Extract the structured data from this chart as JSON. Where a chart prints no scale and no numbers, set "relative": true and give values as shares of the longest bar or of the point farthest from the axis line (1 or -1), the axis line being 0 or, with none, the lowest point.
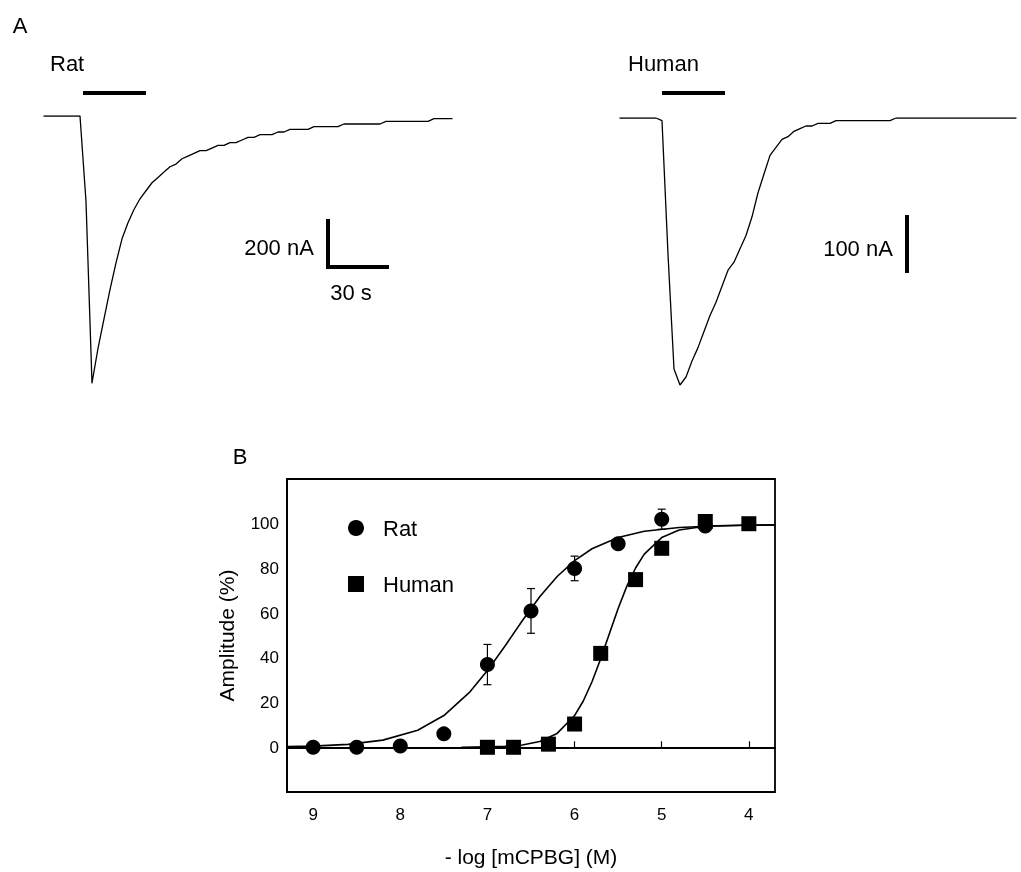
{
  "chart_data": [
    {
      "type": "line",
      "title": "Rat",
      "annotations": [
        "A",
        "200 nA",
        "30 s"
      ],
      "relative": true,
      "marker": "none",
      "color": "#000000",
      "categories": [
        null,
        null,
        null,
        null,
        null,
        null,
        null,
        null,
        null,
        null,
        null,
        null,
        null,
        null,
        null,
        null,
        null,
        null,
        null,
        null,
        null,
        null,
        null,
        null,
        null,
        null,
        null,
        null,
        null,
        null,
        null,
        null,
        null,
        null,
        null,
        null,
        null,
        null,
        null,
        null,
        null,
        null,
        null,
        null,
        null,
        null,
        null,
        null,
        null,
        null,
        null,
        null,
        null,
        null,
        null,
        null,
        null,
        null,
        null,
        null,
        null,
        null,
        null,
        null,
        null,
        null,
        null,
        null,
        null
      ],
      "values": [
        1,
        1,
        1,
        1,
        1,
        1,
        1,
        0.68,
        0,
        0.13,
        0.24,
        0.35,
        0.45,
        0.54,
        0.6,
        0.65,
        0.69,
        0.72,
        0.75,
        0.77,
        0.79,
        0.81,
        0.82,
        0.84,
        0.85,
        0.86,
        0.87,
        0.87,
        0.88,
        0.89,
        0.89,
        0.9,
        0.9,
        0.91,
        0.92,
        0.92,
        0.93,
        0.93,
        0.93,
        0.94,
        0.94,
        0.95,
        0.95,
        0.95,
        0.95,
        0.96,
        0.96,
        0.96,
        0.96,
        0.96,
        0.97,
        0.97,
        0.97,
        0.97,
        0.97,
        0.97,
        0.97,
        0.98,
        0.98,
        0.98,
        0.98,
        0.98,
        0.98,
        0.98,
        0.98,
        0.99,
        0.99,
        0.99,
        0.99
      ]
    },
    {
      "type": "line",
      "title": "Human",
      "annotations": [
        "100 nA"
      ],
      "relative": true,
      "marker": "none",
      "color": "#000000",
      "categories": [
        null,
        null,
        null,
        null,
        null,
        null,
        null,
        null,
        null,
        null,
        null,
        null,
        null,
        null,
        null,
        null,
        null,
        null,
        null,
        null,
        null,
        null,
        null,
        null,
        null,
        null,
        null,
        null,
        null,
        null,
        null,
        null,
        null,
        null,
        null,
        null,
        null,
        null,
        null,
        null,
        null,
        null,
        null,
        null,
        null,
        null,
        null,
        null,
        null,
        null,
        null,
        null,
        null,
        null,
        null,
        null,
        null,
        null,
        null,
        null,
        null,
        null,
        null,
        null,
        null,
        null,
        null
      ],
      "values": [
        1,
        1,
        1,
        1,
        1,
        1,
        1,
        0.99,
        0.49,
        0.06,
        0,
        0.03,
        0.09,
        0.14,
        0.2,
        0.26,
        0.31,
        0.37,
        0.43,
        0.46,
        0.51,
        0.56,
        0.63,
        0.72,
        0.79,
        0.86,
        0.89,
        0.92,
        0.93,
        0.95,
        0.96,
        0.97,
        0.97,
        0.98,
        0.98,
        0.98,
        0.99,
        0.99,
        0.99,
        0.99,
        0.99,
        0.99,
        0.99,
        0.99,
        0.99,
        0.99,
        1,
        1,
        1,
        1,
        1,
        1,
        1,
        1,
        1,
        1,
        1,
        1,
        1,
        1,
        1,
        1,
        1,
        1,
        1,
        1,
        1
      ]
    },
    {
      "type": "scatter",
      "annotations": [
        "B"
      ],
      "xlabel": "- log [mCPBG] (M)",
      "ylabel": "Amplitude (%)",
      "xlim": [
        9.3,
        3.7
      ],
      "xticks": [
        9,
        8,
        7,
        6,
        5,
        4
      ],
      "ylim": [
        -20,
        120
      ],
      "yticks": [
        0,
        20,
        40,
        60,
        80,
        100
      ],
      "legend": "top left",
      "series": [
        {
          "name": "Rat",
          "color": "#000000",
          "marker": "circle",
          "x": [
            9,
            8.5,
            8,
            7.5,
            7,
            6.5,
            6,
            5.5,
            5,
            4.5
          ],
          "values": [
            0,
            0,
            0.6,
            6,
            37,
            61,
            80,
            91,
            102,
            99
          ],
          "errors": [
            null,
            null,
            null,
            null,
            9,
            10,
            5.5,
            null,
            4.5,
            null
          ]
        },
        {
          "name": "Human",
          "color": "#000000",
          "marker": "square",
          "x": [
            7,
            6.7,
            6.3,
            6,
            5.7,
            5.3,
            5,
            4.5,
            4
          ],
          "values": [
            0,
            0,
            1.4,
            10.4,
            42,
            75,
            89,
            101,
            100
          ]
        },
        {
          "type": "line",
          "color": "#000000",
          "marker": "none",
          "x": [
            9.3,
            9,
            8.6,
            8.2,
            7.8,
            7.5,
            7.2,
            7,
            6.8,
            6.6,
            6.4,
            6.2,
            6,
            5.8,
            5.5,
            5.2,
            4.8,
            4.4,
            4,
            3.7
          ],
          "values": [
            0.3,
            0.5,
            1.3,
            3.2,
            7.6,
            14.2,
            24.8,
            34.3,
            45.2,
            56.6,
            67.3,
            76.4,
            83.5,
            88.8,
            93.8,
            96.6,
            98.3,
            99,
            99.3,
            99.4
          ]
        },
        {
          "type": "line",
          "color": "#000000",
          "marker": "none",
          "x": [
            7.3,
            7,
            6.8,
            6.6,
            6.4,
            6.2,
            6,
            5.9,
            5.8,
            5.7,
            5.6,
            5.5,
            5.4,
            5.3,
            5.2,
            5,
            4.8,
            4.5,
            4,
            3.7
          ],
          "values": [
            0,
            0.2,
            0.4,
            1,
            2.6,
            6.2,
            14.2,
            20.7,
            29.3,
            39.6,
            50.9,
            62.1,
            72.1,
            80.2,
            86.4,
            93.8,
            97.2,
            98.9,
            99.4,
            99.5
          ]
        }
      ]
    }
  ]
}
